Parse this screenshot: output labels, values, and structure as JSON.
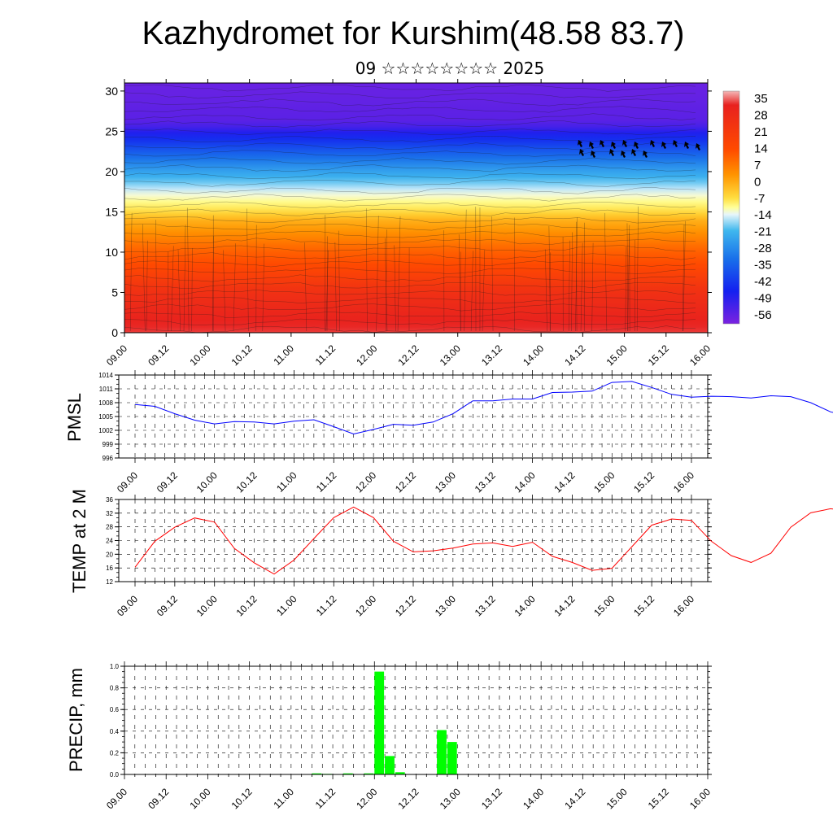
{
  "header": {
    "title": "Kazhydromet for Kurshim(48.58 83.7)",
    "subtitle": "09 ☆☆☆☆☆☆☆☆ 2025"
  },
  "colorbar": {
    "labels": [
      "35",
      "28",
      "21",
      "14",
      "7",
      "0",
      "-7",
      "-14",
      "-21",
      "-28",
      "-35",
      "-42",
      "-49",
      "-56"
    ]
  },
  "colors": {
    "pmsl_line": "#0000ff",
    "temp_line": "#ff0000",
    "precip_bar": "#00ff00"
  },
  "chart_data": [
    {
      "type": "heatmap",
      "name": "cross-section",
      "x_ticks": [
        "09.00",
        "09.12",
        "10.00",
        "10.12",
        "11.00",
        "11.12",
        "12.00",
        "12.12",
        "13.00",
        "13.12",
        "14.00",
        "14.12",
        "15.00",
        "15.12",
        "16.00"
      ],
      "y_ticks": [
        "0",
        "5",
        "10",
        "15",
        "20",
        "25",
        "30"
      ],
      "ylim": [
        0,
        31
      ],
      "value_range": [
        -60,
        38
      ],
      "value_by_height": [
        [
          0,
          33
        ],
        [
          5,
          28
        ],
        [
          10,
          18
        ],
        [
          14,
          6
        ],
        [
          16,
          -5
        ],
        [
          20,
          -22
        ],
        [
          24,
          -45
        ],
        [
          26,
          -56
        ],
        [
          31,
          -58
        ]
      ]
    },
    {
      "type": "line",
      "name": "pmsl",
      "ylabel": "PMSL",
      "ylim": [
        996,
        1014
      ],
      "y_ticks": [
        "996",
        "999",
        "1002",
        "1005",
        "1008",
        "1011",
        "1014"
      ],
      "x_ticks": [
        "09.00",
        "09.12",
        "10.00",
        "10.12",
        "11.00",
        "11.12",
        "12.00",
        "12.12",
        "13.00",
        "13.12",
        "14.00",
        "14.12",
        "15.00",
        "15.12",
        "16.00"
      ],
      "x_start": 0,
      "x_step": 0.25,
      "values": [
        1007.6,
        1007.2,
        1005.6,
        1004.2,
        1003.4,
        1003.9,
        1003.8,
        1003.4,
        1004.0,
        1004.3,
        1002.8,
        1001.2,
        1002.2,
        1003.3,
        1003.1,
        1003.8,
        1005.6,
        1008.4,
        1008.4,
        1008.8,
        1008.8,
        1010.2,
        1010.3,
        1010.5,
        1012.4,
        1012.6,
        1011.3,
        1009.8,
        1009.2,
        1009.4,
        1009.3,
        1009.0,
        1009.5,
        1009.3,
        1008.0,
        1006.0,
        1005.0,
        1004.7,
        1003.6,
        1002.6,
        1003.2,
        1002.1,
        999.2,
        998.7,
        998.7,
        998.0,
        997.6,
        997.9,
        1000.8,
        1004.2,
        1005.3,
        1004.6,
        1005.0,
        1006.6,
        1007.4,
        1008.0,
        1009.0
      ]
    },
    {
      "type": "line",
      "name": "temperature",
      "ylabel": "TEMP at 2 M",
      "ylim": [
        12,
        36
      ],
      "y_ticks": [
        "12",
        "16",
        "20",
        "24",
        "28",
        "32",
        "36"
      ],
      "x_ticks": [
        "09.00",
        "09.12",
        "10.00",
        "10.12",
        "11.00",
        "11.12",
        "12.00",
        "12.12",
        "13.00",
        "13.12",
        "14.00",
        "14.12",
        "15.00",
        "15.12",
        "16.00"
      ],
      "x_start": 0,
      "x_step": 0.25,
      "values": [
        16.2,
        23.8,
        27.9,
        30.6,
        29.4,
        21.7,
        17.5,
        14.2,
        18.3,
        24.6,
        30.7,
        33.8,
        30.7,
        23.8,
        20.7,
        21.0,
        21.8,
        23.0,
        23.3,
        22.3,
        23.5,
        19.4,
        17.6,
        15.3,
        15.9,
        22.2,
        28.5,
        30.3,
        29.9,
        23.8,
        19.6,
        17.6,
        20.3,
        27.9,
        32.1,
        33.3,
        32.6,
        25.8,
        21.4,
        19.5,
        21.9,
        29.4,
        34.4,
        35.8,
        32.0,
        24.4,
        21.7,
        19.5,
        20.1,
        27.4,
        29.3,
        30.4,
        28.1,
        20.6,
        16.7,
        13.0,
        15.0
      ]
    },
    {
      "type": "bar",
      "name": "precipitation",
      "ylabel": "PRECIP, mm",
      "ylim": [
        0,
        1.0
      ],
      "y_ticks": [
        "0.0",
        "0.2",
        "0.4",
        "0.6",
        "0.8",
        "1.0"
      ],
      "x_ticks": [
        "09.00",
        "09.12",
        "10.00",
        "10.12",
        "11.00",
        "11.12",
        "12.00",
        "12.12",
        "13.00",
        "13.12",
        "14.00",
        "14.12",
        "15.00",
        "15.12",
        "16.00"
      ],
      "x_step": 0.125,
      "bars": [
        {
          "x": 2.25,
          "value": 0.01
        },
        {
          "x": 2.375,
          "value": 0.005
        },
        {
          "x": 2.625,
          "value": 0.01
        },
        {
          "x": 2.875,
          "value": 0.01
        },
        {
          "x": 3.0,
          "value": 0.95
        },
        {
          "x": 3.125,
          "value": 0.17
        },
        {
          "x": 3.25,
          "value": 0.02
        },
        {
          "x": 3.75,
          "value": 0.41
        },
        {
          "x": 3.875,
          "value": 0.3
        }
      ]
    }
  ]
}
